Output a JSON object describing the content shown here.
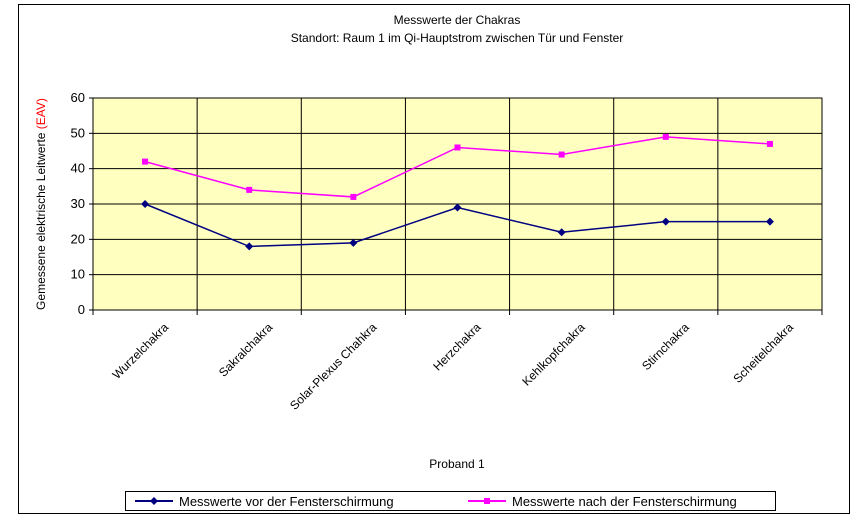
{
  "chart_data": {
    "type": "line",
    "title": "Messwerte der Chakras",
    "subtitle": "Standort: Raum 1 im Qi-Hauptstrom zwischen Tür und Fenster",
    "x_label": "Proband 1",
    "y_label": "Gemessene elektrische Leitwerte ",
    "y_label_unit": "(EAV)",
    "categories": [
      "Wurzelchakra",
      "Sakralchakra",
      "Solar-Plexus Chahkra",
      "Herzchakra",
      "Kehlkopfchakra",
      "Stirnchakra",
      "Scheitelchakra"
    ],
    "series": [
      {
        "name": "Messwerte vor der Fensterschirmung",
        "color": "#000080",
        "values": [
          30,
          18,
          19,
          29,
          22,
          25,
          25
        ]
      },
      {
        "name": "Messwerte nach der Fensterschirmung",
        "color": "#ff00ff",
        "values": [
          42,
          34,
          32,
          46,
          44,
          49,
          47
        ]
      }
    ],
    "ylim": [
      0,
      60
    ],
    "yticks": [
      0,
      10,
      20,
      30,
      40,
      50,
      60
    ],
    "grid": true,
    "legend": "bottom"
  }
}
